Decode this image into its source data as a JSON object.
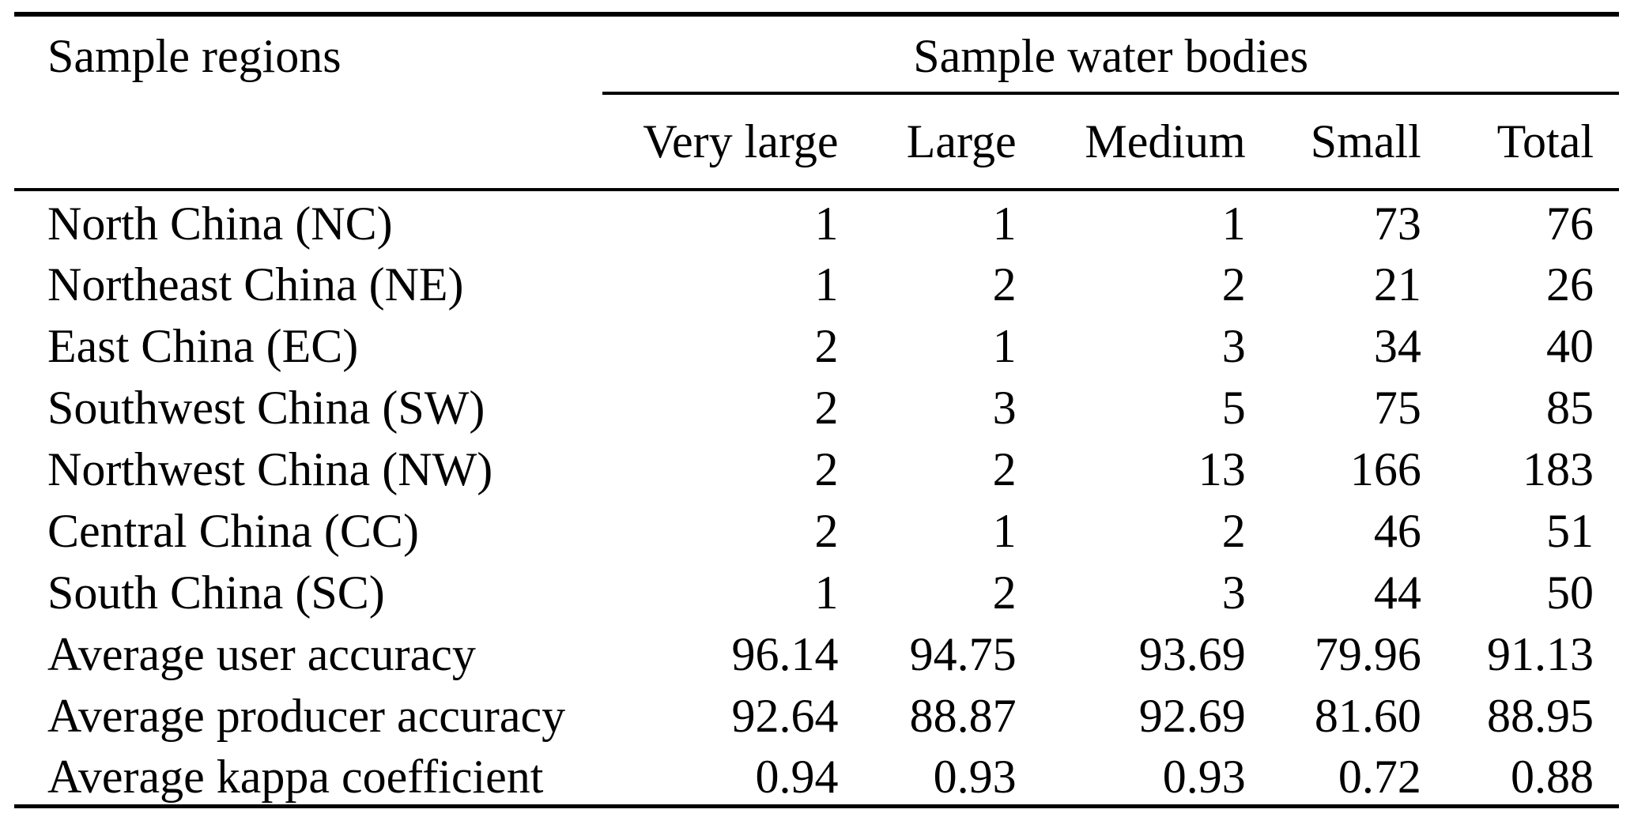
{
  "table": {
    "corner_header": "Sample regions",
    "group_header": "Sample water bodies",
    "columns": [
      "Very large",
      "Large",
      "Medium",
      "Small",
      "Total"
    ],
    "rows": [
      {
        "label": "North China (NC)",
        "values": [
          "1",
          "1",
          "1",
          "73",
          "76"
        ]
      },
      {
        "label": "Northeast China (NE)",
        "values": [
          "1",
          "2",
          "2",
          "21",
          "26"
        ]
      },
      {
        "label": "East China (EC)",
        "values": [
          "2",
          "1",
          "3",
          "34",
          "40"
        ]
      },
      {
        "label": "Southwest China (SW)",
        "values": [
          "2",
          "3",
          "5",
          "75",
          "85"
        ]
      },
      {
        "label": "Northwest China (NW)",
        "values": [
          "2",
          "2",
          "13",
          "166",
          "183"
        ]
      },
      {
        "label": "Central China (CC)",
        "values": [
          "2",
          "1",
          "2",
          "46",
          "51"
        ]
      },
      {
        "label": "South China (SC)",
        "values": [
          "1",
          "2",
          "3",
          "44",
          "50"
        ]
      },
      {
        "label": "Average user accuracy",
        "values": [
          "96.14",
          "94.75",
          "93.69",
          "79.96",
          "91.13"
        ]
      },
      {
        "label": "Average producer accuracy",
        "values": [
          "92.64",
          "88.87",
          "92.69",
          "81.60",
          "88.95"
        ]
      },
      {
        "label": "Average kappa coefficient",
        "values": [
          "0.94",
          "0.93",
          "0.93",
          "0.72",
          "0.88"
        ]
      }
    ],
    "colors": {
      "text": "#000000",
      "background": "#ffffff",
      "rule": "#000000"
    }
  }
}
